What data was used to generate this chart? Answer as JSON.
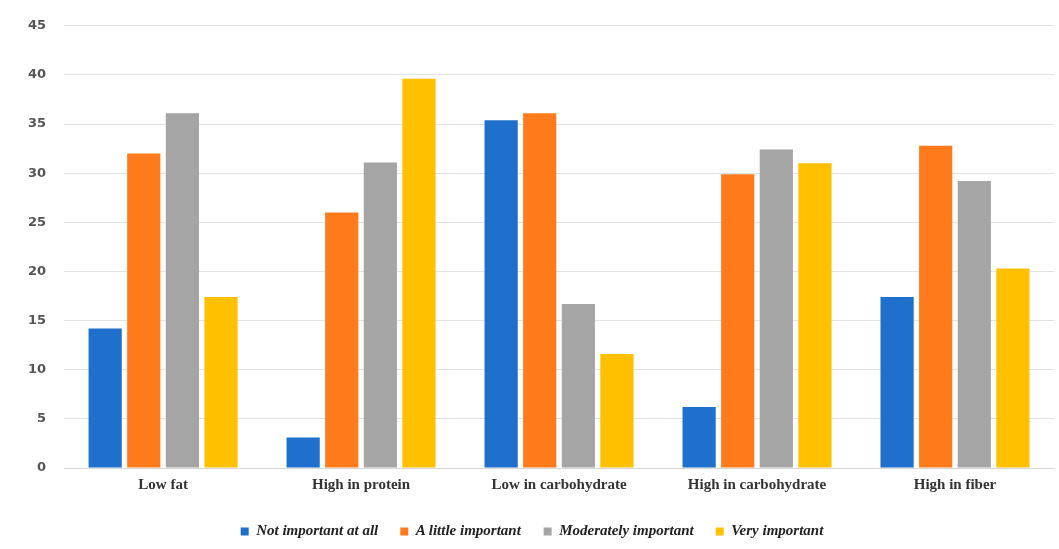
{
  "chart_data": {
    "type": "bar",
    "categories": [
      "Low fat",
      "High in protein",
      "Low in carbohydrate",
      "High in carbohydrate",
      "High in fiber"
    ],
    "series": [
      {
        "name": "Not important at all",
        "color": "#1f6fcc",
        "values": [
          14.2,
          3.1,
          35.4,
          6.2,
          17.4
        ]
      },
      {
        "name": "A little important",
        "color": "#ff7a1a",
        "values": [
          32.0,
          26.0,
          36.1,
          29.9,
          32.8
        ]
      },
      {
        "name": "Moderately important",
        "color": "#a5a5a5",
        "values": [
          36.1,
          31.1,
          16.7,
          32.4,
          29.2
        ]
      },
      {
        "name": "Very important",
        "color": "#ffc000",
        "values": [
          17.4,
          39.6,
          11.6,
          31.0,
          20.3
        ]
      }
    ],
    "ylim": [
      0,
      45
    ],
    "yticks": [
      0,
      5,
      10,
      15,
      20,
      25,
      30,
      35,
      40,
      45
    ],
    "grid": "y",
    "legend": "bottom"
  }
}
